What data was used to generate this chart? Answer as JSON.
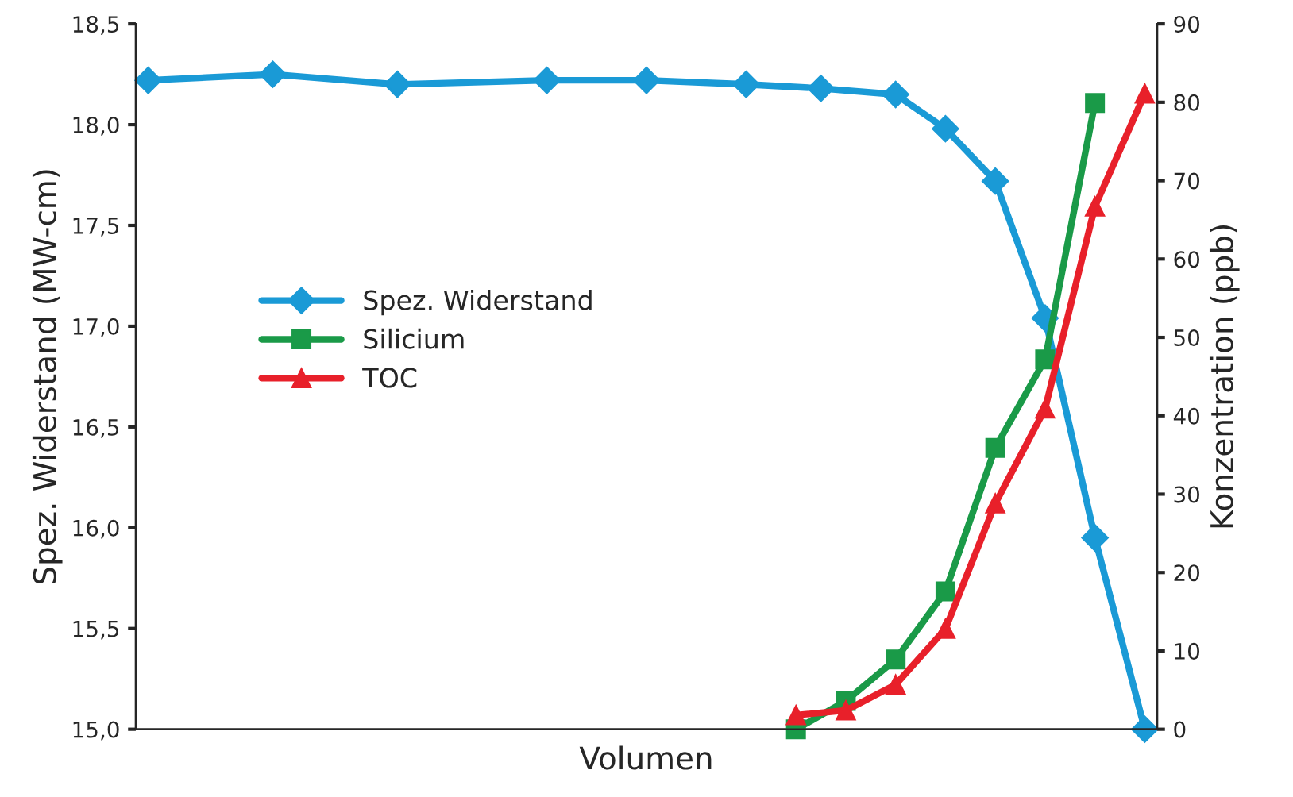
{
  "chart_data": {
    "type": "line",
    "xlabel": "Volumen",
    "ylabel": "Spez. Widerstand (MW-cm)",
    "y2label": "Konzentration (ppb)",
    "categories": [
      null,
      null,
      null,
      null,
      null,
      null,
      null,
      null,
      null,
      null,
      null,
      null,
      null,
      null,
      null,
      null,
      null,
      null,
      null,
      null,
      null,
      null,
      null,
      null,
      null,
      null,
      null,
      null,
      null,
      null,
      null,
      null,
      null,
      null,
      null,
      null,
      null,
      null,
      null,
      null,
      null
    ],
    "series": [
      {
        "name": "Spez. Widerstand",
        "color": "#1a9ad6",
        "marker": "diamond",
        "values": [
          18.22,
          null,
          null,
          null,
          null,
          18.25,
          null,
          null,
          null,
          null,
          18.2,
          null,
          null,
          null,
          null,
          null,
          18.22,
          null,
          null,
          null,
          18.22,
          null,
          null,
          null,
          18.2,
          null,
          null,
          18.18,
          null,
          null,
          18.15,
          null,
          17.98,
          null,
          17.72,
          null,
          17.04,
          null,
          15.95,
          null,
          15.0
        ]
      },
      {
        "name": "Silicium",
        "color": "#1a9a48",
        "marker": "square",
        "axis": "y2",
        "values": [
          null,
          null,
          null,
          null,
          null,
          null,
          null,
          null,
          null,
          null,
          null,
          null,
          null,
          null,
          null,
          null,
          null,
          null,
          null,
          null,
          null,
          null,
          null,
          null,
          null,
          null,
          0,
          null,
          3.6,
          null,
          8.9,
          null,
          17.6,
          null,
          35.9,
          null,
          47.2,
          null,
          79.9,
          null,
          null
        ]
      },
      {
        "name": "TOC",
        "color": "#e8202a",
        "marker": "triangle",
        "axis": "y2",
        "values": [
          null,
          null,
          null,
          null,
          null,
          null,
          null,
          null,
          null,
          null,
          null,
          null,
          null,
          null,
          null,
          null,
          null,
          null,
          null,
          null,
          null,
          null,
          null,
          null,
          null,
          null,
          1.8,
          null,
          2.4,
          null,
          5.7,
          null,
          12.8,
          null,
          28.8,
          null,
          40.9,
          null,
          66.7,
          null,
          81.1
        ]
      }
    ],
    "ylim": [
      15,
      18.5
    ],
    "yticks": [
      {
        "value": 15,
        "label": "15,0"
      },
      {
        "value": 15.5,
        "label": "15,5"
      },
      {
        "value": 16,
        "label": "16,0"
      },
      {
        "value": 16.5,
        "label": "16,5"
      },
      {
        "value": 17,
        "label": "17,0"
      },
      {
        "value": 17.5,
        "label": "17,5"
      },
      {
        "value": 18,
        "label": "18,0"
      },
      {
        "value": 18.5,
        "label": "18,5"
      }
    ],
    "y2lim": [
      0,
      90
    ],
    "y2ticks": [
      0,
      10,
      20,
      30,
      40,
      50,
      60,
      70,
      80,
      90
    ],
    "legend": "left",
    "grid": false,
    "line_style": "solid"
  }
}
